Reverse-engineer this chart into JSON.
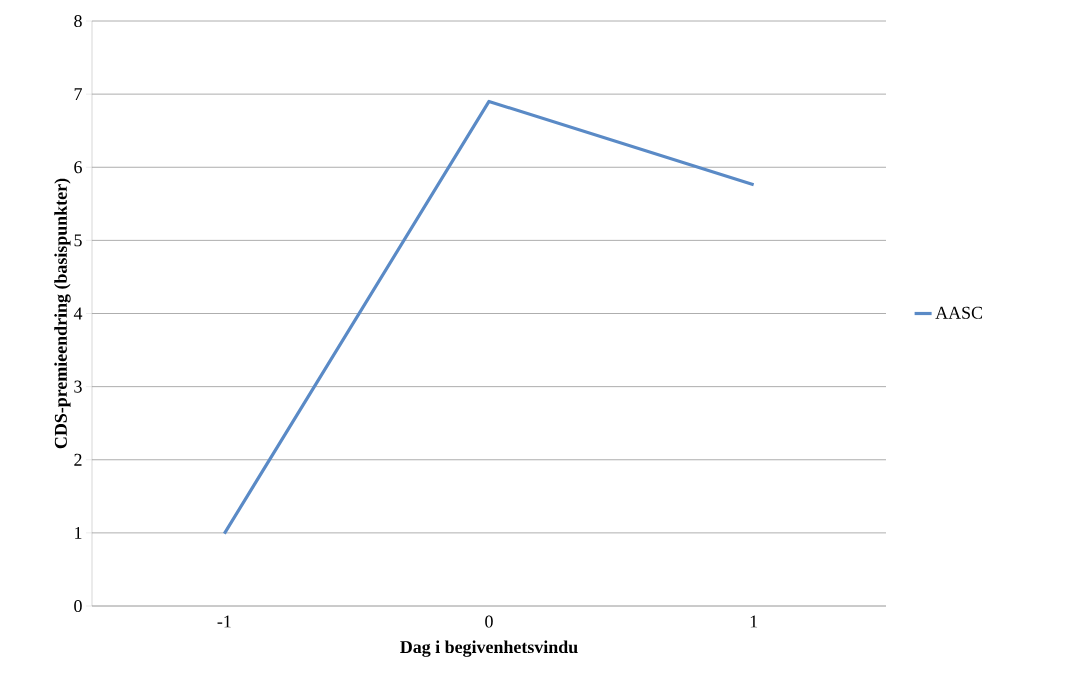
{
  "chart_data": {
    "type": "line",
    "xlabel": "Dag i begivenhetsvindu",
    "ylabel": "CDS-premieendring (basispunkter)",
    "categories": [
      "-1",
      "0",
      "1"
    ],
    "series": [
      {
        "name": "AASC",
        "color": "#5a8ac6",
        "values": [
          0.99,
          6.9,
          5.76
        ]
      }
    ],
    "ylim": [
      0,
      8
    ],
    "yticks": [
      0,
      1,
      2,
      3,
      4,
      5,
      6,
      7,
      8
    ],
    "grid": "y",
    "legend": "right",
    "marker": "none",
    "line_style": "solid"
  }
}
